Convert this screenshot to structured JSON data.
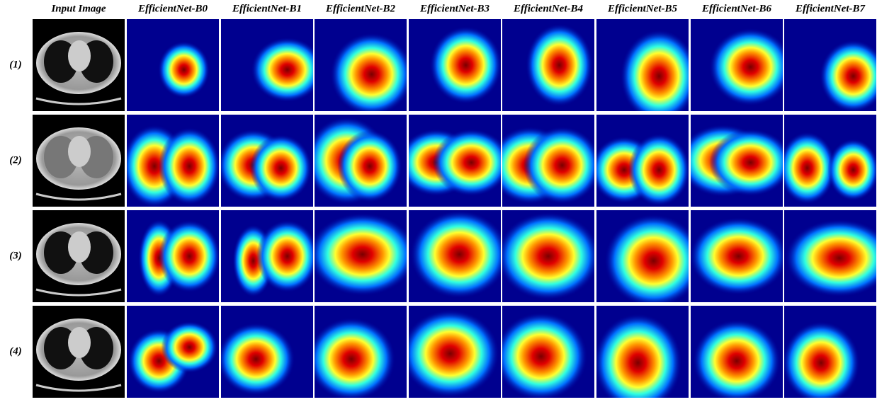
{
  "header": {
    "columns": [
      "Input Image",
      "EfficientNet-B0",
      "EfficientNet-B1",
      "EfficientNet-B2",
      "EfficientNet-B3",
      "EfficientNet-B4",
      "EfficientNet-B5",
      "EfficientNet-B6",
      "EfficientNet-B7"
    ]
  },
  "rows": [
    {
      "label": "(1)"
    },
    {
      "label": "(2)"
    },
    {
      "label": "(3)"
    },
    {
      "label": "(4)"
    }
  ]
}
